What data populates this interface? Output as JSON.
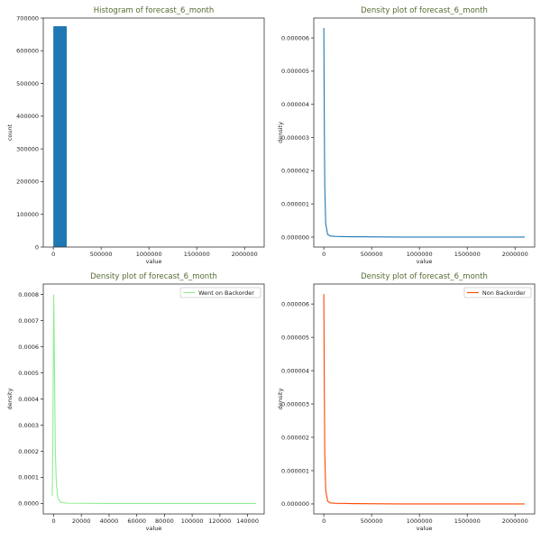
{
  "colors": {
    "title": "#556b2f",
    "histogram_bar": "#1f77b4",
    "density_all": "#1f77b4",
    "density_backorder": "#90ee90",
    "density_non_backorder": "#ff4500"
  },
  "chart_data": [
    {
      "type": "bar",
      "title": "Histogram of forecast_6_month",
      "xlabel": "value",
      "ylabel": "count",
      "xlim": [
        -105000,
        2205000
      ],
      "ylim": [
        0,
        700000
      ],
      "x_ticks": [
        0,
        500000,
        1000000,
        1500000,
        2000000
      ],
      "x_tick_labels": [
        "0",
        "500000",
        "1000000",
        "1500000",
        "2000000"
      ],
      "y_ticks": [
        0,
        100000,
        200000,
        300000,
        400000,
        500000,
        600000,
        700000
      ],
      "y_tick_labels": [
        "0",
        "100000",
        "200000",
        "300000",
        "400000",
        "500000",
        "600000",
        "700000"
      ],
      "bins": [
        {
          "x0": 0,
          "x1": 140000,
          "count": 675000
        }
      ],
      "grid": false
    },
    {
      "type": "line",
      "title": "Density plot of forecast_6_month",
      "xlabel": "value",
      "ylabel": "density",
      "xlim": [
        -105000,
        2205000
      ],
      "ylim": [
        -3e-07,
        6.6e-06
      ],
      "x_ticks": [
        0,
        500000,
        1000000,
        1500000,
        2000000
      ],
      "x_tick_labels": [
        "0",
        "500000",
        "1000000",
        "1500000",
        "2000000"
      ],
      "y_ticks": [
        0,
        1e-06,
        2e-06,
        3e-06,
        4e-06,
        5e-06,
        6e-06
      ],
      "y_tick_labels": [
        "0.000000",
        "0.000001",
        "0.000002",
        "0.000003",
        "0.000004",
        "0.000005",
        "0.000006"
      ],
      "series": [
        {
          "x": [
            0,
            5000,
            10000,
            20000,
            40000,
            70000,
            120000,
            300000,
            800000,
            1500000,
            2100000
          ],
          "y": [
            6.3e-06,
            3.5e-06,
            1.5e-06,
            4e-07,
            8e-08,
            3e-08,
            2e-08,
            1e-08,
            0,
            0,
            0
          ]
        }
      ],
      "grid": false
    },
    {
      "type": "line",
      "title": "Density plot of forecast_6_month",
      "xlabel": "value",
      "ylabel": "density",
      "xlim": [
        -7500,
        152000
      ],
      "ylim": [
        -4e-05,
        0.00084
      ],
      "x_ticks": [
        0,
        20000,
        40000,
        60000,
        80000,
        100000,
        120000,
        140000
      ],
      "x_tick_labels": [
        "0",
        "20000",
        "40000",
        "60000",
        "80000",
        "100000",
        "120000",
        "140000"
      ],
      "y_ticks": [
        0,
        0.0001,
        0.0002,
        0.0003,
        0.0004,
        0.0005,
        0.0006,
        0.0007,
        0.0008
      ],
      "y_tick_labels": [
        "0.0000",
        "0.0001",
        "0.0002",
        "0.0003",
        "0.0004",
        "0.0005",
        "0.0006",
        "0.0007",
        "0.0008"
      ],
      "legend": "top-right",
      "series": [
        {
          "name": "Went on Backorder",
          "x": [
            -1000,
            -500,
            0,
            300,
            700,
            1200,
            2000,
            3000,
            5000,
            10000,
            40000,
            146000
          ],
          "y": [
            3e-05,
            0.0003,
            0.0008,
            0.0007,
            0.00045,
            0.0002,
            7e-05,
            2e-05,
            5e-06,
            1e-06,
            0,
            0
          ]
        }
      ],
      "grid": false
    },
    {
      "type": "line",
      "title": "Density plot of forecast_6_month",
      "xlabel": "value",
      "ylabel": "density",
      "xlim": [
        -105000,
        2205000
      ],
      "ylim": [
        -3e-07,
        6.6e-06
      ],
      "x_ticks": [
        0,
        500000,
        1000000,
        1500000,
        2000000
      ],
      "x_tick_labels": [
        "0",
        "500000",
        "1000000",
        "1500000",
        "2000000"
      ],
      "y_ticks": [
        0,
        1e-06,
        2e-06,
        3e-06,
        4e-06,
        5e-06,
        6e-06
      ],
      "y_tick_labels": [
        "0.000000",
        "0.000001",
        "0.000002",
        "0.000003",
        "0.000004",
        "0.000005",
        "0.000006"
      ],
      "legend": "top-right",
      "series": [
        {
          "name": "Non Backorder",
          "x": [
            0,
            5000,
            10000,
            20000,
            40000,
            70000,
            120000,
            300000,
            800000,
            1500000,
            2100000
          ],
          "y": [
            6.3e-06,
            3.5e-06,
            1.5e-06,
            4e-07,
            8e-08,
            3e-08,
            2e-08,
            1e-08,
            0,
            0,
            0
          ]
        }
      ],
      "grid": false
    }
  ]
}
